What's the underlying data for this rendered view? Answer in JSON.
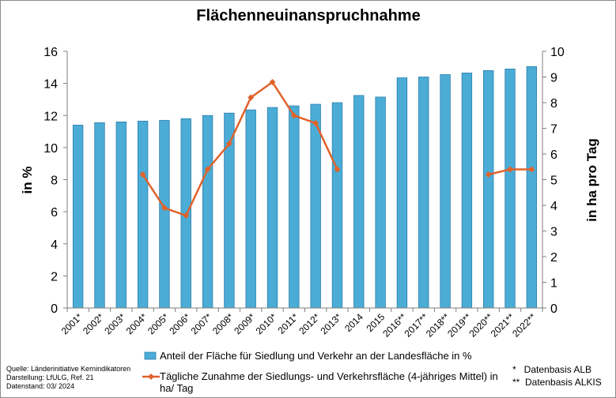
{
  "chart_data": {
    "type": "bar",
    "title": "Flächenneuinanspruchnahme",
    "ylabel": "in %",
    "y2label": "in ha pro Tag",
    "ylim": [
      0,
      16
    ],
    "y2lim": [
      0,
      10
    ],
    "yticks": [
      "0",
      "2",
      "4",
      "6",
      "8",
      "10",
      "12",
      "14",
      "16"
    ],
    "y2ticks": [
      "0",
      "1",
      "2",
      "3",
      "4",
      "5",
      "6",
      "7",
      "8",
      "9",
      "10"
    ],
    "grid": false,
    "legend_position": "bottom",
    "categories": [
      "2001*",
      "2002*",
      "2003*",
      "2004*",
      "2005*",
      "2006*",
      "2007*",
      "2008*",
      "2009*",
      "2010*",
      "2011*",
      "2012*",
      "2013*",
      "2014",
      "2015",
      "2016**",
      "2017**",
      "2018**",
      "2019**",
      "2020**",
      "2021**",
      "2022**"
    ],
    "series": [
      {
        "name": "Anteil der Fläche für Siedlung und Verkehr an der Landesfläche in %",
        "type": "bar",
        "axis": "left",
        "color": "#4bacd6",
        "values": [
          11.4,
          11.55,
          11.6,
          11.65,
          11.7,
          11.8,
          12.0,
          12.15,
          12.35,
          12.5,
          12.6,
          12.7,
          12.8,
          13.25,
          13.15,
          14.35,
          14.4,
          14.55,
          14.65,
          14.8,
          14.9,
          15.05
        ]
      },
      {
        "name": "Tägliche Zunahme der Siedlungs- und Verkehrsfläche (4-jähriges Mittel) in ha/ Tag",
        "type": "line",
        "axis": "right",
        "color": "#e0622b",
        "values": [
          null,
          null,
          null,
          5.2,
          3.9,
          3.6,
          5.4,
          6.4,
          8.2,
          8.8,
          7.5,
          7.2,
          5.4,
          null,
          null,
          null,
          null,
          null,
          null,
          5.2,
          5.4,
          5.4
        ]
      }
    ]
  },
  "legend": {
    "bar_label": "Anteil der Fläche für Siedlung und Verkehr an der Landesfläche in %",
    "line_label_1": "Tägliche Zunahme der Siedlungs- und Verkehrsfläche (4-jähriges Mittel) in",
    "line_label_2": "ha/ Tag"
  },
  "source": {
    "quelle": "Quelle:  Länderinitiative  Kernindikatoren",
    "darstellung": "Darstellung:  LfULG, Ref. 21",
    "datenstand": "Datenstand:  03/ 2024"
  },
  "footnotes": {
    "alb": "*   Datenbasis ALB",
    "alkis": "**  Datenbasis ALKIS"
  }
}
